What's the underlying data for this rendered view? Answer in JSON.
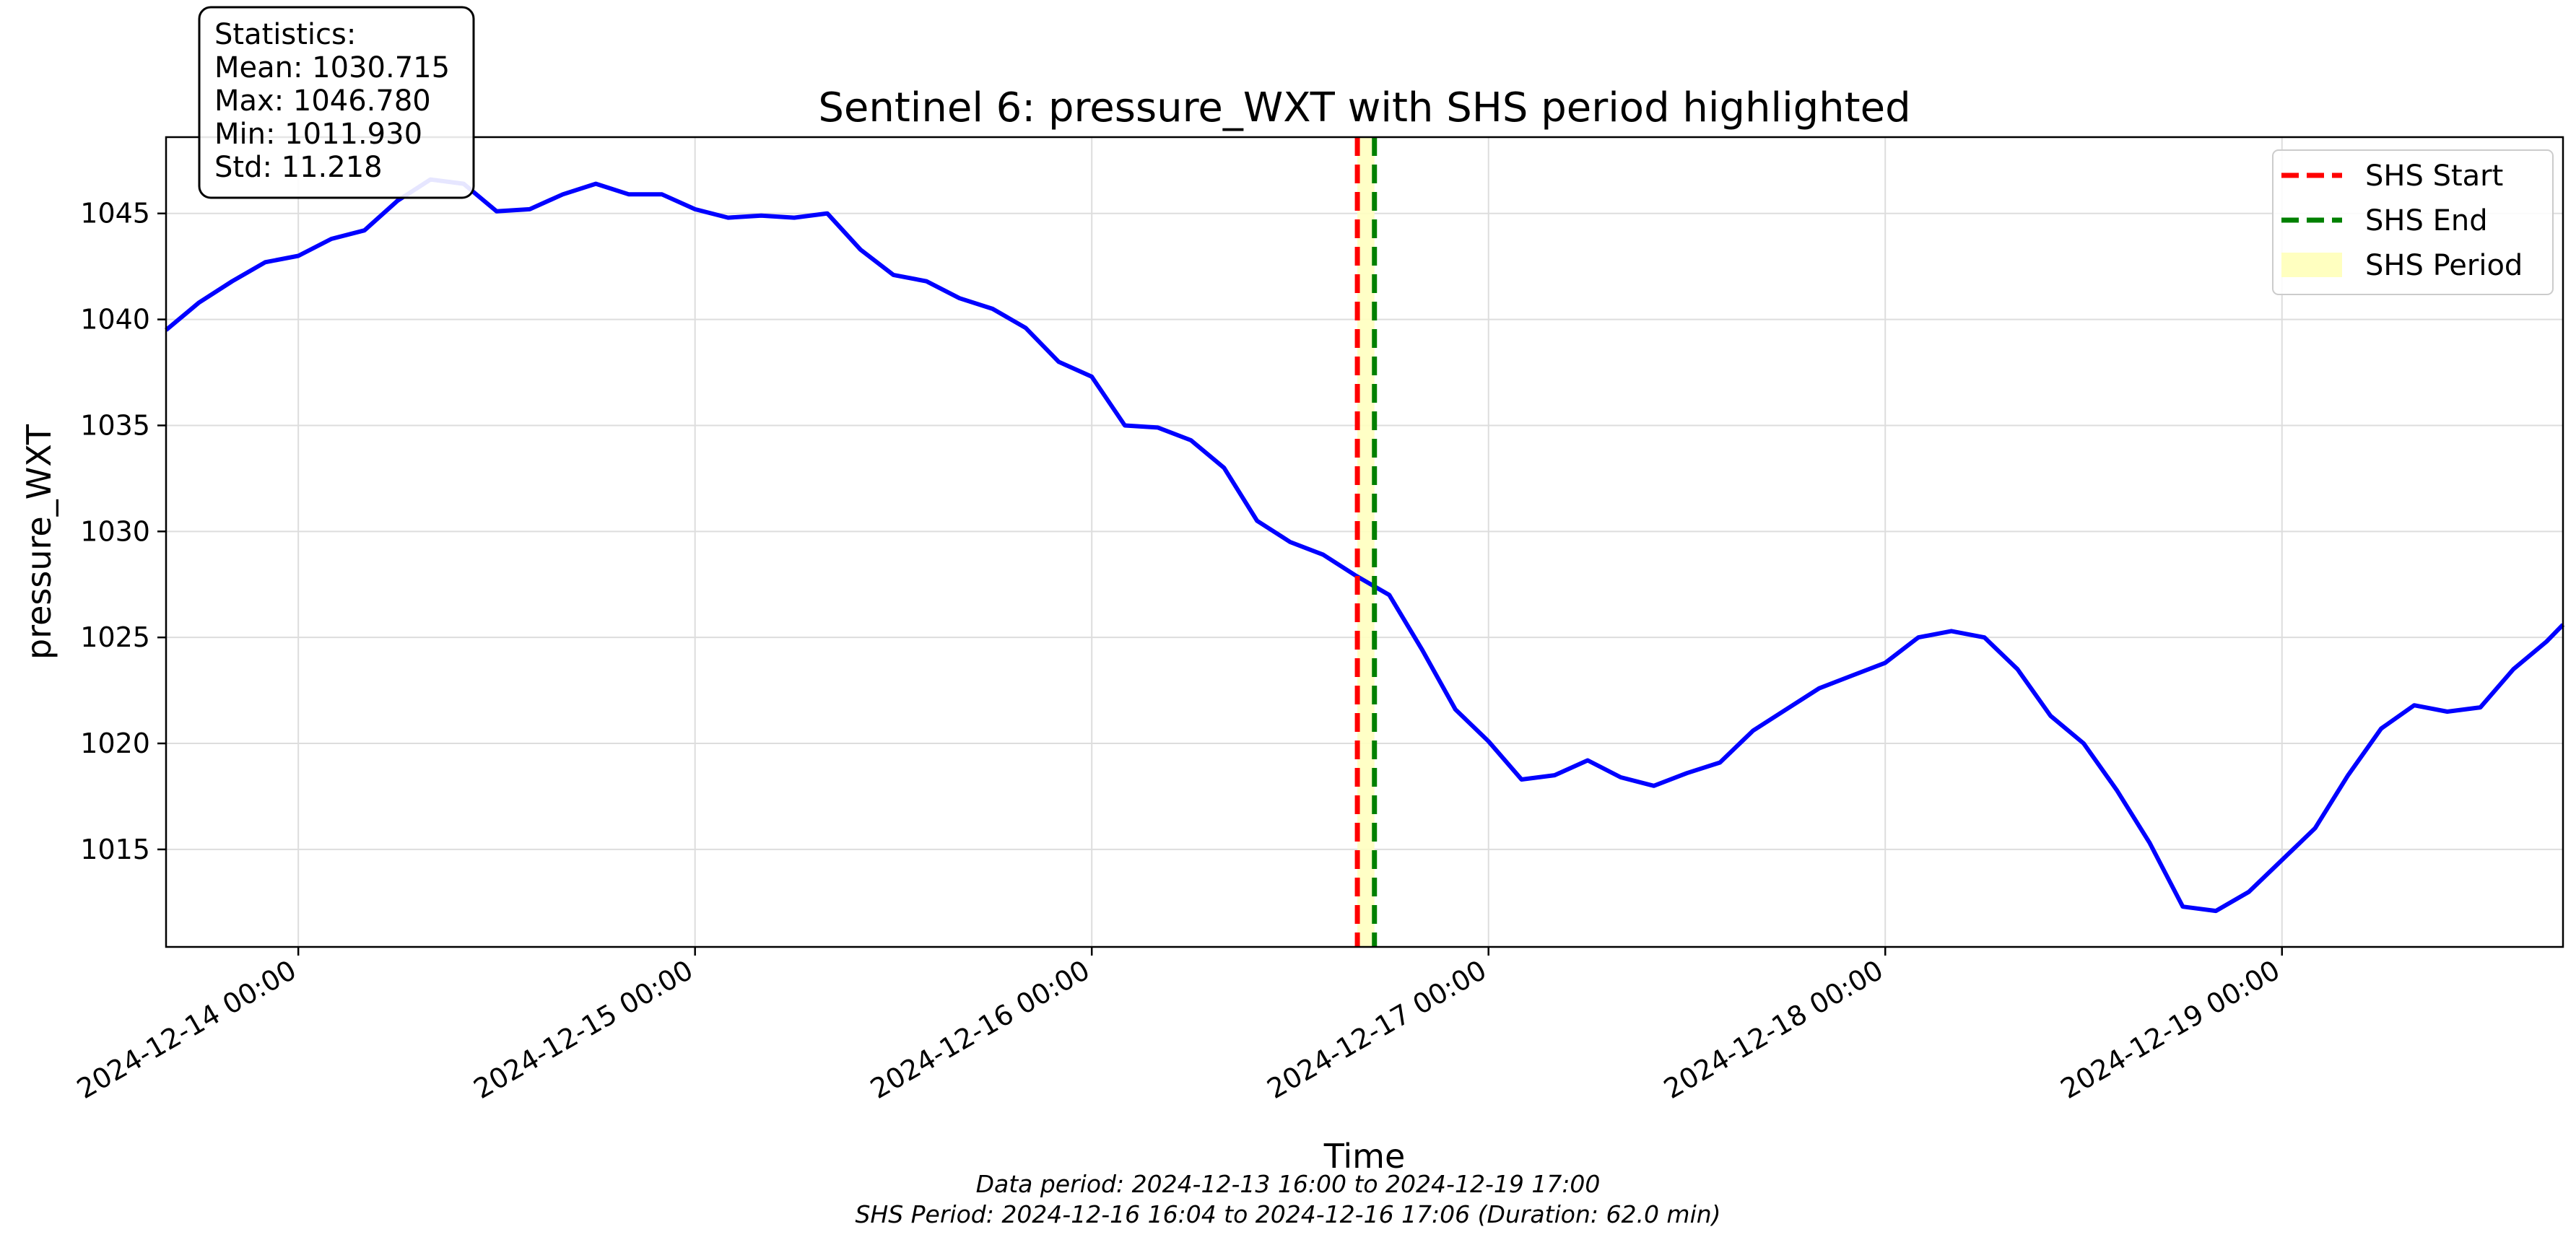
{
  "chart_data": {
    "type": "line",
    "title": "Sentinel 6: pressure_WXT with SHS period highlighted",
    "xlabel": "Time",
    "ylabel": "pressure_WXT",
    "xlim": [
      "2024-12-13 16:00",
      "2024-12-19 17:00"
    ],
    "ylim": [
      1010.4,
      1048.6
    ],
    "grid": true,
    "y_ticks": [
      1015,
      1020,
      1025,
      1030,
      1035,
      1040,
      1045
    ],
    "x_ticks": [
      {
        "t": "2024-12-14 00:00",
        "label": "2024-12-14 00:00"
      },
      {
        "t": "2024-12-15 00:00",
        "label": "2024-12-15 00:00"
      },
      {
        "t": "2024-12-16 00:00",
        "label": "2024-12-16 00:00"
      },
      {
        "t": "2024-12-17 00:00",
        "label": "2024-12-17 00:00"
      },
      {
        "t": "2024-12-18 00:00",
        "label": "2024-12-18 00:00"
      },
      {
        "t": "2024-12-19 00:00",
        "label": "2024-12-19 00:00"
      }
    ],
    "series": [
      {
        "color": "#0000ff",
        "x": [
          "2024-12-13 16:00",
          "2024-12-13 18:00",
          "2024-12-13 20:00",
          "2024-12-13 22:00",
          "2024-12-14 00:00",
          "2024-12-14 02:00",
          "2024-12-14 04:00",
          "2024-12-14 06:00",
          "2024-12-14 08:00",
          "2024-12-14 10:00",
          "2024-12-14 12:00",
          "2024-12-14 14:00",
          "2024-12-14 16:00",
          "2024-12-14 18:00",
          "2024-12-14 20:00",
          "2024-12-14 22:00",
          "2024-12-15 00:00",
          "2024-12-15 02:00",
          "2024-12-15 04:00",
          "2024-12-15 06:00",
          "2024-12-15 08:00",
          "2024-12-15 10:00",
          "2024-12-15 12:00",
          "2024-12-15 14:00",
          "2024-12-15 16:00",
          "2024-12-15 18:00",
          "2024-12-15 20:00",
          "2024-12-15 22:00",
          "2024-12-16 00:00",
          "2024-12-16 02:00",
          "2024-12-16 04:00",
          "2024-12-16 06:00",
          "2024-12-16 08:00",
          "2024-12-16 10:00",
          "2024-12-16 12:00",
          "2024-12-16 14:00",
          "2024-12-16 16:00",
          "2024-12-16 18:00",
          "2024-12-16 20:00",
          "2024-12-16 22:00",
          "2024-12-17 00:00",
          "2024-12-17 02:00",
          "2024-12-17 04:00",
          "2024-12-17 06:00",
          "2024-12-17 08:00",
          "2024-12-17 10:00",
          "2024-12-17 12:00",
          "2024-12-17 14:00",
          "2024-12-17 16:00",
          "2024-12-17 18:00",
          "2024-12-17 20:00",
          "2024-12-17 22:00",
          "2024-12-18 00:00",
          "2024-12-18 02:00",
          "2024-12-18 04:00",
          "2024-12-18 06:00",
          "2024-12-18 08:00",
          "2024-12-18 10:00",
          "2024-12-18 12:00",
          "2024-12-18 14:00",
          "2024-12-18 16:00",
          "2024-12-18 18:00",
          "2024-12-18 20:00",
          "2024-12-18 22:00",
          "2024-12-19 00:00",
          "2024-12-19 02:00",
          "2024-12-19 04:00",
          "2024-12-19 06:00",
          "2024-12-19 08:00",
          "2024-12-19 10:00",
          "2024-12-19 12:00",
          "2024-12-19 14:00",
          "2024-12-19 16:00",
          "2024-12-19 17:00"
        ],
        "y": [
          1039.5,
          1040.8,
          1041.8,
          1042.7,
          1043.0,
          1043.8,
          1044.2,
          1045.6,
          1046.6,
          1046.4,
          1045.1,
          1045.2,
          1045.9,
          1046.4,
          1045.9,
          1045.9,
          1045.2,
          1044.8,
          1044.9,
          1044.8,
          1045.0,
          1043.3,
          1042.1,
          1041.8,
          1041.0,
          1040.5,
          1039.6,
          1038.0,
          1037.3,
          1035.0,
          1034.9,
          1034.3,
          1033.0,
          1030.5,
          1029.5,
          1028.9,
          1027.9,
          1027.0,
          1024.4,
          1021.6,
          1020.1,
          1018.3,
          1018.5,
          1019.2,
          1018.4,
          1018.0,
          1018.6,
          1019.1,
          1020.6,
          1021.6,
          1022.6,
          1023.2,
          1023.8,
          1025.0,
          1025.3,
          1025.0,
          1023.5,
          1021.3,
          1020.0,
          1017.8,
          1015.3,
          1012.3,
          1012.1,
          1013.0,
          1014.5,
          1016.0,
          1018.5,
          1020.7,
          1021.8,
          1021.5,
          1021.7,
          1023.5,
          1024.8,
          1025.6
        ]
      }
    ],
    "shs": {
      "start": "2024-12-16 16:04",
      "end": "2024-12-16 17:06",
      "start_color": "#ff0000",
      "end_color": "#008000",
      "fill_color": "#ffffc0"
    },
    "legend": {
      "placement": "top-right",
      "entries": [
        {
          "label": "SHS Start",
          "color": "#ff0000",
          "style": "dashed"
        },
        {
          "label": "SHS End",
          "color": "#008000",
          "style": "dashed"
        },
        {
          "label": "SHS Period",
          "color": "#ffffc0",
          "style": "fill"
        }
      ]
    },
    "stats_box": [
      "Statistics:",
      "Mean: 1030.715",
      "Max: 1046.780",
      "Min: 1011.930",
      "Std: 11.218"
    ],
    "footer": [
      "Data period: 2024-12-13 16:00 to 2024-12-19 17:00",
      "SHS Period: 2024-12-16 16:04 to 2024-12-16 17:06 (Duration: 62.0 min)"
    ]
  }
}
